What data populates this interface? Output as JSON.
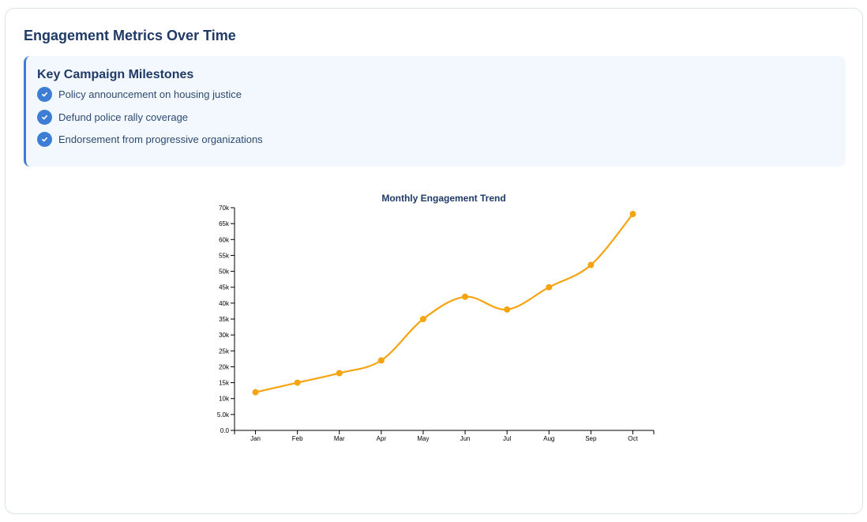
{
  "header": {
    "title": "Engagement Metrics Over Time"
  },
  "milestones": {
    "title": "Key Campaign Milestones",
    "items": [
      {
        "label": "Policy announcement on housing justice",
        "icon": "check-circle-icon"
      },
      {
        "label": "Defund police rally coverage",
        "icon": "check-circle-icon"
      },
      {
        "label": "Endorsement from progressive organizations",
        "icon": "check-circle-icon"
      }
    ]
  },
  "colors": {
    "accent": "#3d7ed4",
    "line": "#f5a30f",
    "heading": "#1f3a66"
  },
  "chart_data": {
    "type": "line",
    "title": "Monthly Engagement Trend",
    "xlabel": "",
    "ylabel": "",
    "categories": [
      "Jan",
      "Feb",
      "Mar",
      "Apr",
      "May",
      "Jun",
      "Jul",
      "Aug",
      "Sep",
      "Oct"
    ],
    "series": [
      {
        "values": [
          12000,
          15000,
          18000,
          22000,
          35000,
          42000,
          38000,
          45000,
          52000,
          68000
        ]
      }
    ],
    "ylim": [
      0,
      70000
    ],
    "yticks": [
      0,
      5000,
      10000,
      15000,
      20000,
      25000,
      30000,
      35000,
      40000,
      45000,
      50000,
      55000,
      60000,
      65000,
      70000
    ],
    "ytick_labels": [
      "0.0",
      "5.0k",
      "10k",
      "15k",
      "20k",
      "25k",
      "30k",
      "35k",
      "40k",
      "45k",
      "50k",
      "55k",
      "60k",
      "65k",
      "70k"
    ],
    "curve": "smooth",
    "grid": false,
    "legend": "none"
  }
}
